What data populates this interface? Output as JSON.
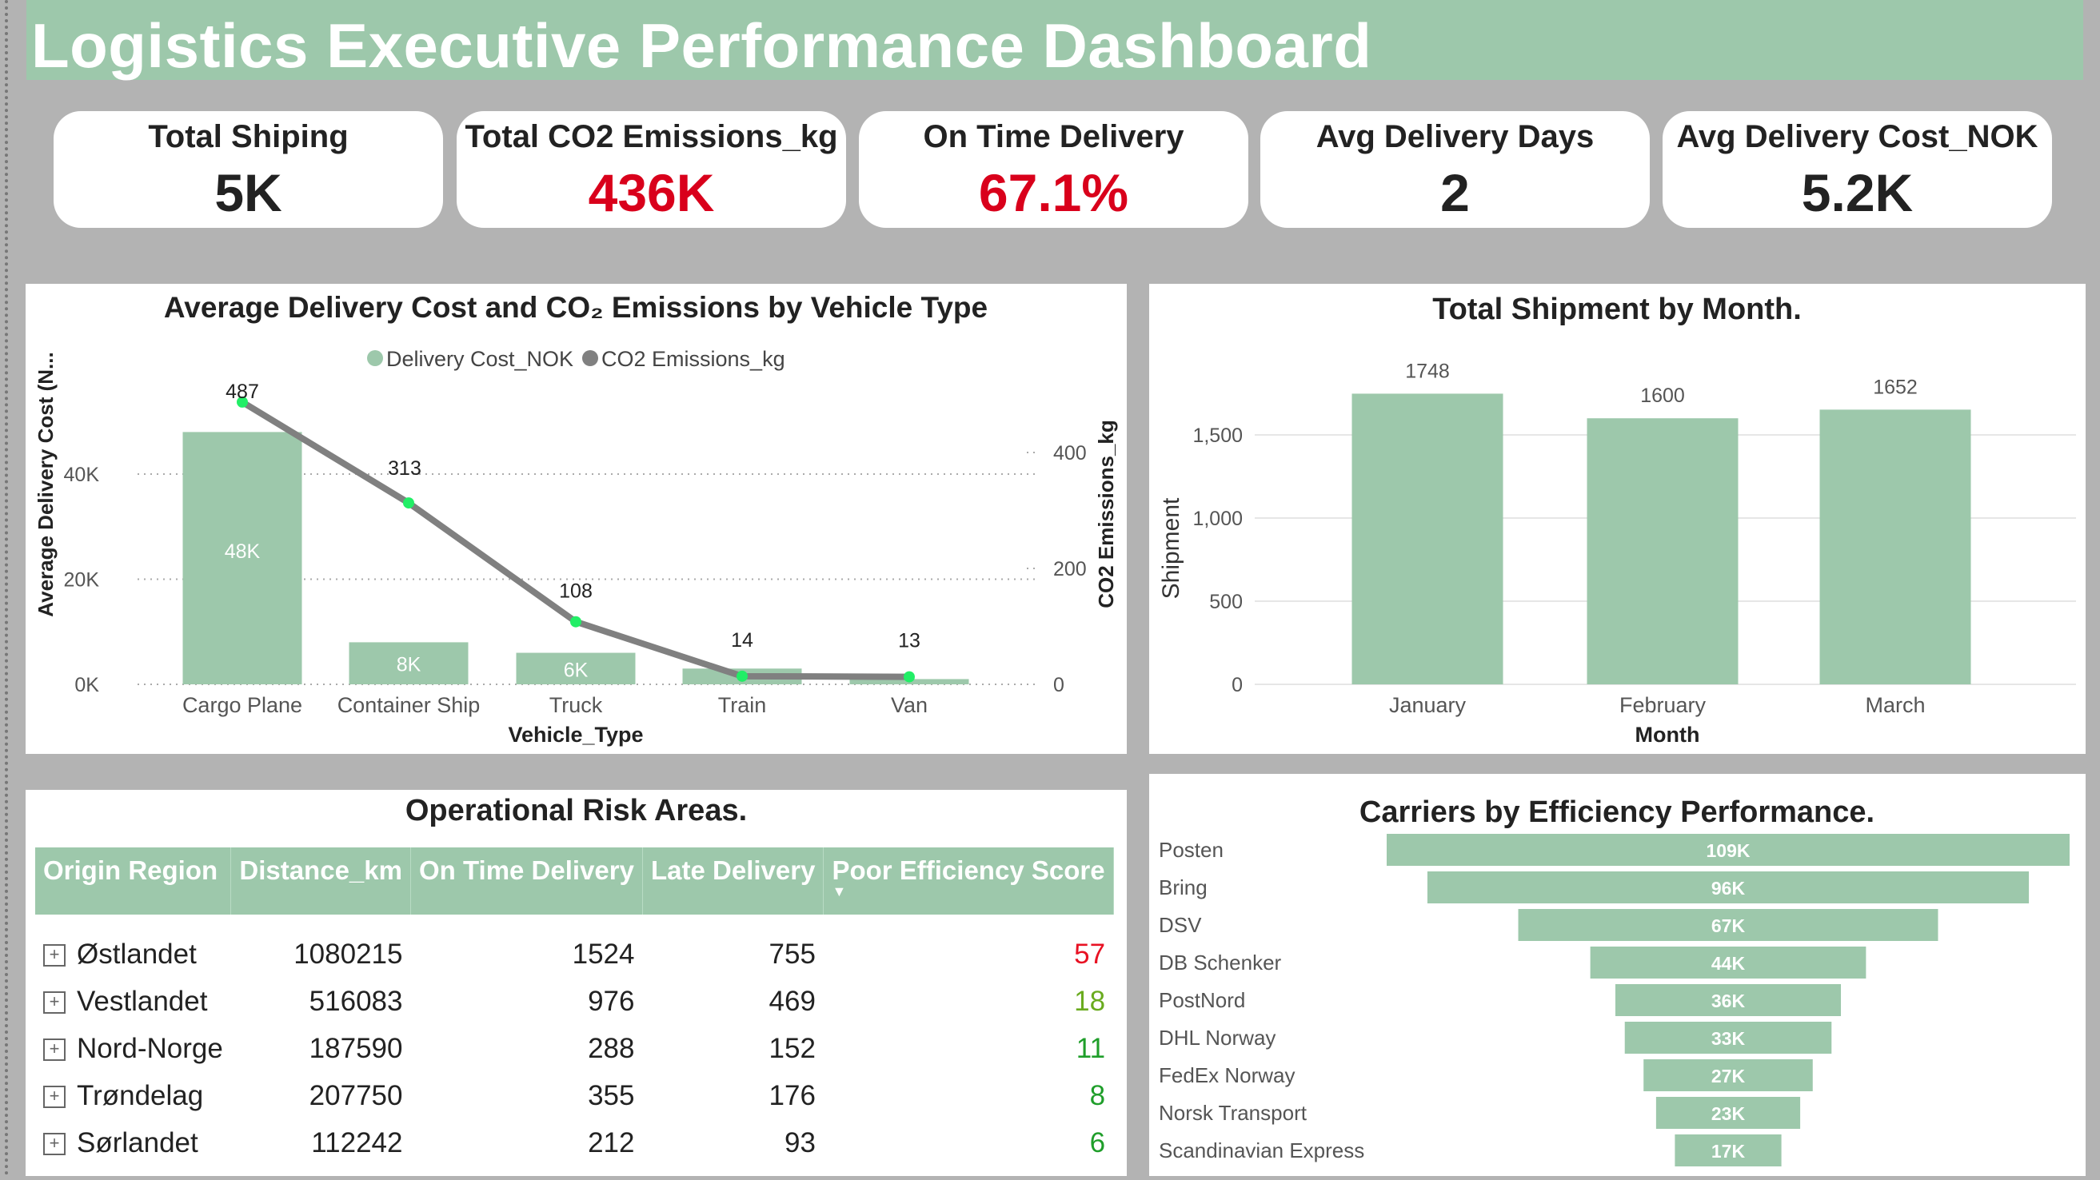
{
  "title": "Logistics Executive Performance Dashboard",
  "kpis": [
    {
      "label": "Total Shiping",
      "value": "5K",
      "color": "#222222"
    },
    {
      "label": "Total CO2 Emissions_kg",
      "value": "436K",
      "color": "#d9001b"
    },
    {
      "label": "On Time Delivery",
      "value": "67.1%",
      "color": "#d9001b"
    },
    {
      "label": "Avg Delivery Days",
      "value": "2",
      "color": "#222222"
    },
    {
      "label": "Avg Delivery Cost_NOK",
      "value": "5.2K",
      "color": "#222222"
    }
  ],
  "chart_data": [
    {
      "type": "bar+line",
      "title": "Average Delivery Cost and CO₂ Emissions by Vehicle Type",
      "legend": [
        "Delivery Cost_NOK",
        "CO2 Emissions_kg"
      ],
      "legend_placement": "top",
      "xlabel": "Vehicle_Type",
      "ylabel": "Average Delivery Cost (N...",
      "y2label": "CO2 Emissions_kg",
      "categories": [
        "Cargo Plane",
        "Container Ship",
        "Truck",
        "Train",
        "Van"
      ],
      "series": [
        {
          "name": "Delivery Cost_NOK",
          "type": "bar",
          "axis": "left",
          "values": [
            48000,
            8000,
            6000,
            3000,
            1000
          ],
          "labels": [
            "48K",
            "8K",
            "6K",
            "",
            ""
          ],
          "color": "#9dc8ab"
        },
        {
          "name": "CO2 Emissions_kg",
          "type": "line",
          "axis": "right",
          "values": [
            487,
            313,
            108,
            14,
            13
          ],
          "labels": [
            "487",
            "313",
            "108",
            "14",
            "13"
          ],
          "color": "#808080",
          "marker_color": "#22ee66"
        }
      ],
      "yticks": [
        "0K",
        "20K",
        "40K"
      ],
      "ytick_values": [
        0,
        20000,
        40000
      ],
      "y2ticks": [
        "0",
        "200",
        "400"
      ],
      "y2tick_values": [
        0,
        200,
        400
      ],
      "grid": true
    },
    {
      "type": "bar",
      "title": "Total Shipment by Month.",
      "xlabel": "Month",
      "ylabel": "Shipment",
      "categories": [
        "January",
        "February",
        "March"
      ],
      "values": [
        1748,
        1600,
        1652
      ],
      "labels": [
        "1748",
        "1600",
        "1652"
      ],
      "yticks": [
        "0",
        "500",
        "1,000",
        "1,500"
      ],
      "ytick_values": [
        0,
        500,
        1000,
        1500
      ],
      "color": "#9dc8ab",
      "grid": true
    },
    {
      "type": "funnel",
      "title": "Carriers by Efficiency Performance.",
      "categories": [
        "Posten",
        "Bring",
        "DSV",
        "DB Schenker",
        "PostNord",
        "DHL Norway",
        "FedEx Norway",
        "Norsk Transport",
        "Scandinavian Express"
      ],
      "values": [
        109000,
        96000,
        67000,
        44000,
        36000,
        33000,
        27000,
        23000,
        17000
      ],
      "labels": [
        "109K",
        "96K",
        "67K",
        "44K",
        "36K",
        "33K",
        "27K",
        "23K",
        "17K"
      ],
      "color": "#9dc8ab"
    }
  ],
  "table": {
    "title": "Operational Risk Areas.",
    "columns": [
      "Origin Region",
      "Distance_km",
      "On Time Delivery",
      "Late Delivery",
      "Poor Efficiency Score"
    ],
    "sorted_column": "Poor Efficiency Score",
    "rows": [
      {
        "region": "Østlandet",
        "distance": "1080215",
        "ontime": "1524",
        "late": "755",
        "score": "57",
        "score_color": "#e81123"
      },
      {
        "region": "Vestlandet",
        "distance": "516083",
        "ontime": "976",
        "late": "469",
        "score": "18",
        "score_color": "#6aab1f"
      },
      {
        "region": "Nord-Norge",
        "distance": "187590",
        "ontime": "288",
        "late": "152",
        "score": "11",
        "score_color": "#1f9e2a"
      },
      {
        "region": "Trøndelag",
        "distance": "207750",
        "ontime": "355",
        "late": "176",
        "score": "8",
        "score_color": "#1f9e2a"
      },
      {
        "region": "Sørlandet",
        "distance": "112242",
        "ontime": "212",
        "late": "93",
        "score": "6",
        "score_color": "#1f9e2a"
      }
    ]
  }
}
